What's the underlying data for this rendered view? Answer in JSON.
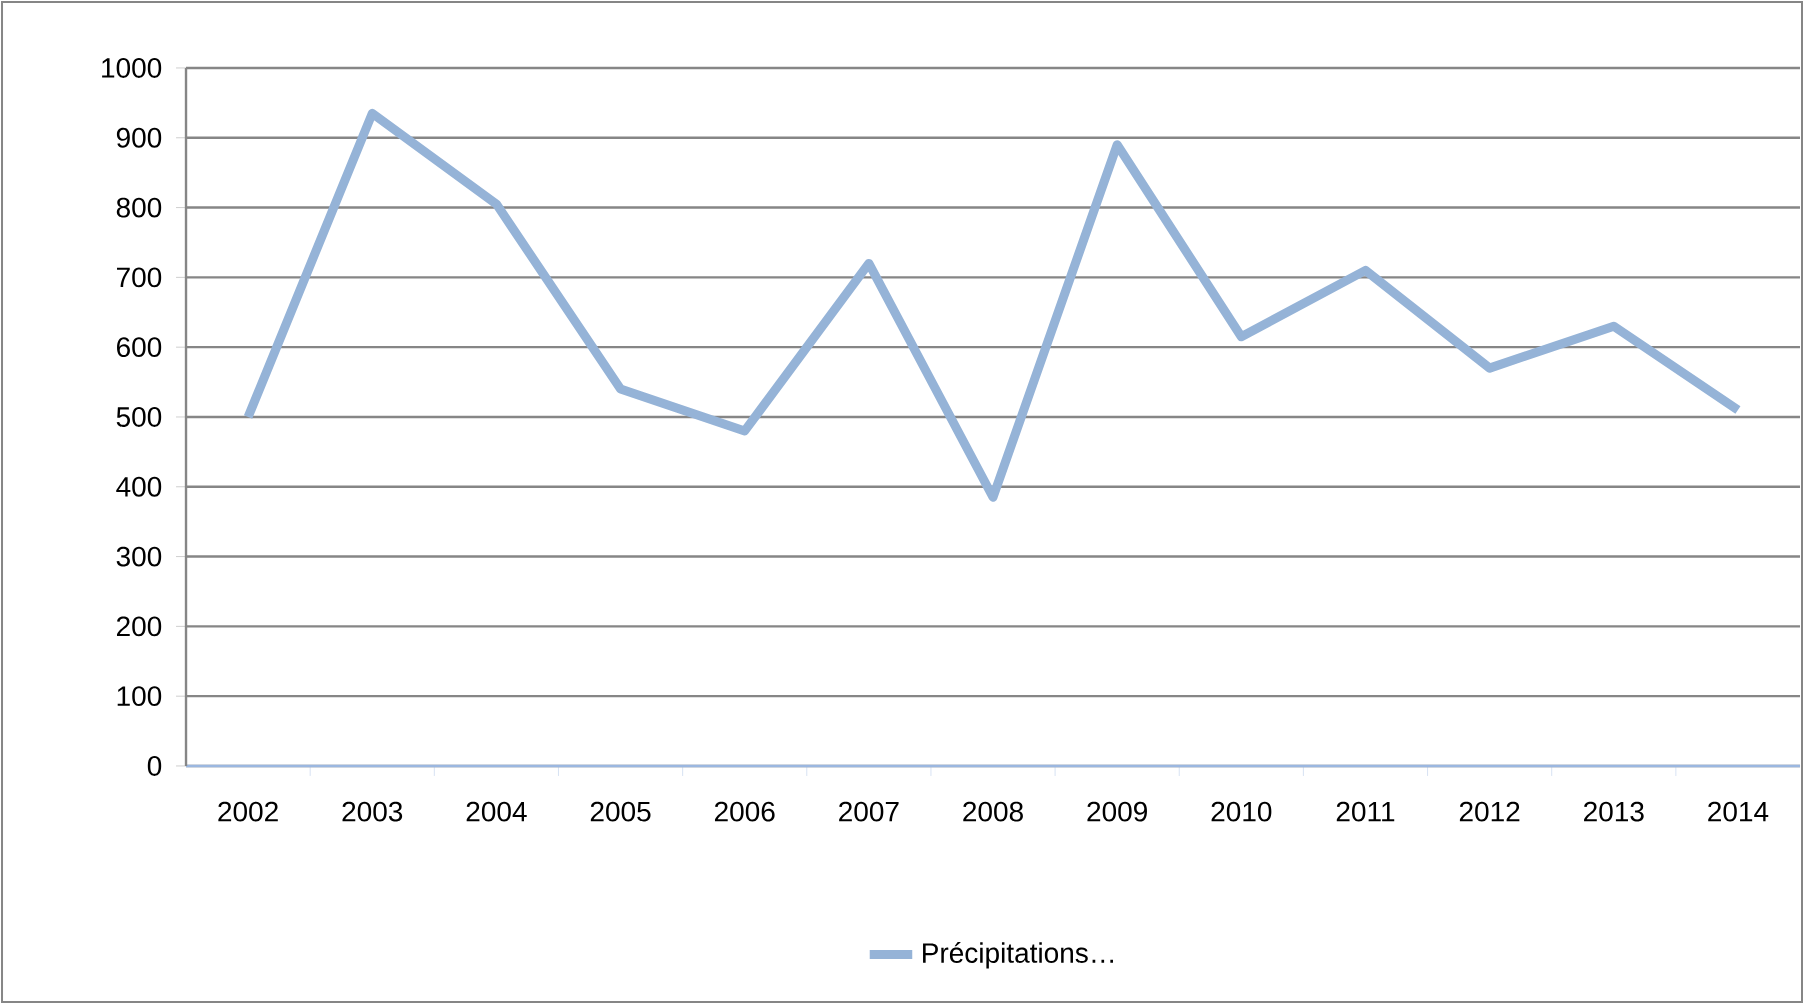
{
  "chart_data": {
    "type": "line",
    "categories": [
      "2002",
      "2003",
      "2004",
      "2005",
      "2006",
      "2007",
      "2008",
      "2009",
      "2010",
      "2011",
      "2012",
      "2013",
      "2014"
    ],
    "series": [
      {
        "name": "Précipitations…",
        "color": "#95b3d7",
        "values": [
          500,
          935,
          805,
          540,
          480,
          720,
          385,
          890,
          615,
          710,
          570,
          630,
          510
        ]
      }
    ],
    "ylim": [
      0,
      1000
    ],
    "yticks": [
      0,
      100,
      200,
      300,
      400,
      500,
      600,
      700,
      800,
      900,
      1000
    ],
    "grid": "y",
    "legend": "bottom",
    "marker": "none",
    "line_style": "solid"
  }
}
